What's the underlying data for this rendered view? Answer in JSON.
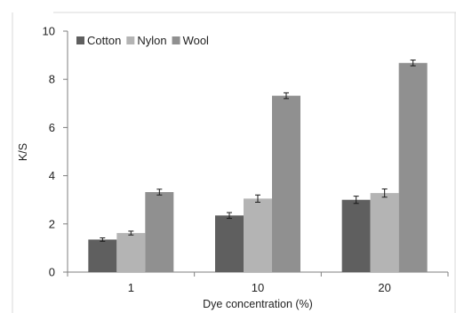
{
  "chart_data": {
    "type": "bar",
    "title": "",
    "xlabel": "Dye concentration (%)",
    "ylabel": "K/S",
    "categories": [
      "1",
      "10",
      "20"
    ],
    "ylim": [
      0,
      10
    ],
    "yticks": [
      0,
      2,
      4,
      6,
      8,
      10
    ],
    "grid": false,
    "legend": "top-left",
    "error_bars": true,
    "series": [
      {
        "name": "Cotton",
        "color": "#5f5f5f",
        "values": [
          1.35,
          2.35,
          3.0
        ],
        "errors": [
          0.07,
          0.12,
          0.15
        ]
      },
      {
        "name": "Nylon",
        "color": "#b4b4b4",
        "values": [
          1.62,
          3.05,
          3.28
        ],
        "errors": [
          0.08,
          0.15,
          0.17
        ]
      },
      {
        "name": "Wool",
        "color": "#909090",
        "values": [
          3.32,
          7.32,
          8.68
        ],
        "errors": [
          0.12,
          0.12,
          0.12
        ]
      }
    ]
  }
}
